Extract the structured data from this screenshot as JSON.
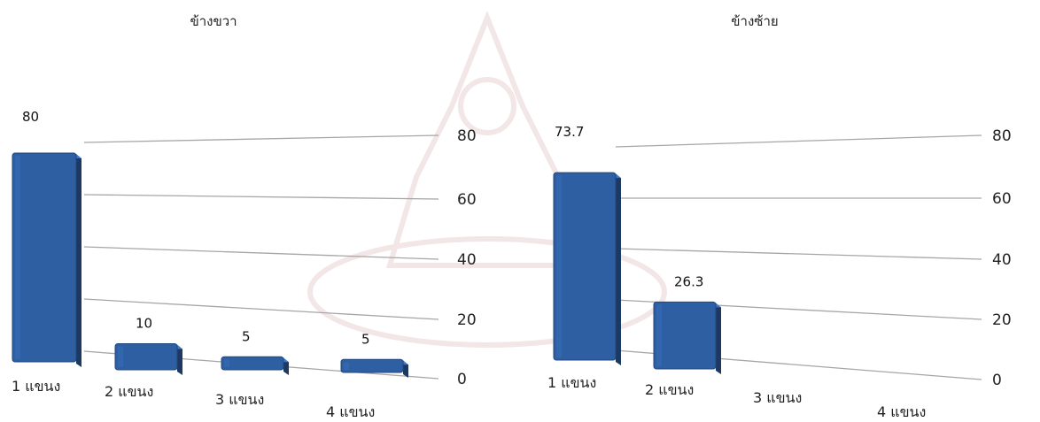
{
  "chart_data": [
    {
      "type": "bar",
      "title": "ข้างขวา",
      "categories": [
        "1 แขนง",
        "2 แขนง",
        "3 แขนง",
        "4 แขนง"
      ],
      "values": [
        80,
        10,
        5,
        5
      ],
      "data_labels": [
        "80",
        "10",
        "5",
        "5"
      ],
      "ylim": [
        0,
        80
      ],
      "yticks": [
        0,
        20,
        40,
        60,
        80
      ],
      "y_axis_side": "right",
      "grid": true,
      "color": "#2f5fa3",
      "style": "3d-perspective"
    },
    {
      "type": "bar",
      "title": "ข้างซ้าย",
      "categories": [
        "1 แขนง",
        "2 แขนง",
        "3 แขนง",
        "4 แขนง"
      ],
      "values": [
        73.7,
        26.3,
        0,
        0
      ],
      "data_labels": [
        "73.7",
        "26.3",
        "",
        ""
      ],
      "ylim": [
        0,
        80
      ],
      "yticks": [
        0,
        20,
        40,
        60,
        80
      ],
      "y_axis_side": "right",
      "grid": true,
      "color": "#2f5fa3",
      "style": "3d-perspective"
    }
  ]
}
